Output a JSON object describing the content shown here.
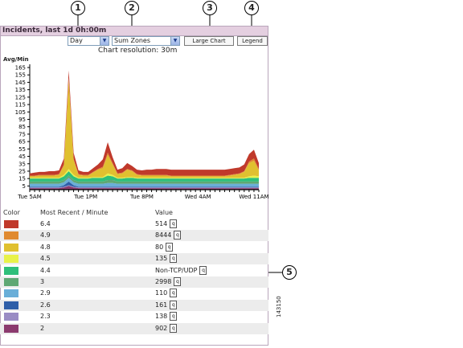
{
  "title": "Incidents, last 1d 0h:00m",
  "controls": {
    "period_select": "Day",
    "zones_select": "Sum Zones",
    "large_chart": "Large Chart",
    "legend": "Legend"
  },
  "resolution": "Chart resolution: 30m",
  "callouts": [
    "1",
    "2",
    "3",
    "4",
    "5"
  ],
  "figure_number": "143150",
  "chart_data": {
    "type": "area",
    "stacked": true,
    "ylabel": "Avg/Min",
    "ylim": [
      0,
      165
    ],
    "yticks": [
      5,
      15,
      25,
      35,
      45,
      55,
      65,
      75,
      85,
      95,
      105,
      115,
      125,
      135,
      145,
      155,
      165
    ],
    "xticks": [
      "Tue 5AM",
      "Tue 1PM",
      "Tue 8PM",
      "Wed 4AM",
      "Wed 11AM"
    ],
    "x": [
      0,
      1,
      2,
      3,
      4,
      5,
      6,
      7,
      8,
      9,
      10,
      11,
      12,
      13,
      14,
      15,
      16,
      17,
      18,
      19,
      20,
      21,
      22,
      23,
      24,
      25,
      26,
      27,
      28,
      29,
      30,
      31,
      32,
      33,
      34,
      35,
      36,
      37,
      38,
      39,
      40,
      41,
      42,
      43,
      44,
      45,
      46,
      47
    ],
    "series": [
      {
        "color": "#8b3a6e",
        "values": [
          2,
          2,
          2,
          2,
          2,
          2,
          2,
          3,
          5,
          3,
          2,
          2,
          2,
          2,
          2,
          2,
          2,
          2,
          2,
          2,
          2,
          2,
          2,
          2,
          2,
          2,
          2,
          2,
          2,
          2,
          2,
          2,
          2,
          2,
          2,
          2,
          2,
          2,
          2,
          2,
          2,
          2,
          2,
          2,
          2,
          2,
          2,
          2
        ]
      },
      {
        "color": "#9a8cc4",
        "values": [
          1,
          1,
          1,
          1,
          1,
          1,
          1,
          1,
          1,
          1,
          1,
          1,
          1,
          1,
          1,
          1,
          1,
          1,
          1,
          1,
          1,
          1,
          1,
          1,
          1,
          1,
          1,
          1,
          1,
          1,
          1,
          1,
          1,
          1,
          1,
          1,
          1,
          1,
          1,
          1,
          1,
          1,
          1,
          1,
          1,
          1,
          1,
          1
        ]
      },
      {
        "color": "#2f5fa8",
        "values": [
          1,
          1,
          1,
          1,
          1,
          1,
          1,
          2,
          5,
          2,
          1,
          1,
          1,
          1,
          1,
          1,
          1,
          1,
          1,
          1,
          1,
          1,
          1,
          1,
          1,
          1,
          1,
          1,
          1,
          1,
          1,
          1,
          1,
          1,
          1,
          1,
          1,
          1,
          1,
          1,
          1,
          1,
          1,
          1,
          1,
          1,
          1,
          1
        ]
      },
      {
        "color": "#6aaed8",
        "values": [
          4,
          4,
          4,
          4,
          4,
          4,
          4,
          4,
          5,
          4,
          4,
          4,
          4,
          4,
          4,
          4,
          5,
          5,
          4,
          4,
          4,
          4,
          4,
          4,
          4,
          4,
          4,
          4,
          4,
          4,
          4,
          4,
          4,
          4,
          4,
          4,
          4,
          4,
          4,
          4,
          4,
          4,
          4,
          4,
          4,
          4,
          4,
          4
        ]
      },
      {
        "color": "#5fa874",
        "values": [
          3,
          3,
          3,
          3,
          3,
          3,
          3,
          3,
          3,
          3,
          3,
          3,
          3,
          3,
          3,
          3,
          4,
          4,
          3,
          3,
          3,
          3,
          3,
          3,
          3,
          3,
          3,
          3,
          3,
          3,
          3,
          3,
          3,
          3,
          3,
          3,
          3,
          3,
          3,
          3,
          3,
          3,
          3,
          3,
          3,
          3,
          3,
          3
        ]
      },
      {
        "color": "#2fbf7a",
        "values": [
          4,
          4,
          4,
          4,
          4,
          4,
          4,
          5,
          6,
          5,
          4,
          4,
          4,
          5,
          5,
          5,
          6,
          5,
          4,
          4,
          5,
          5,
          4,
          4,
          4,
          4,
          4,
          4,
          4,
          4,
          4,
          4,
          4,
          4,
          4,
          4,
          4,
          4,
          4,
          4,
          4,
          4,
          4,
          4,
          4,
          5,
          5,
          5
        ]
      },
      {
        "color": "#e8f24a",
        "values": [
          1,
          1,
          1,
          1,
          1,
          1,
          1,
          2,
          3,
          2,
          1,
          1,
          1,
          1,
          1,
          1,
          3,
          2,
          1,
          1,
          1,
          1,
          1,
          1,
          1,
          1,
          1,
          1,
          1,
          1,
          1,
          1,
          1,
          1,
          1,
          1,
          1,
          1,
          1,
          1,
          1,
          1,
          1,
          1,
          1,
          2,
          3,
          2
        ]
      },
      {
        "color": "#e0c030",
        "values": [
          2,
          2,
          3,
          3,
          3,
          3,
          4,
          12,
          120,
          20,
          4,
          3,
          3,
          6,
          10,
          12,
          25,
          14,
          5,
          6,
          10,
          8,
          4,
          3,
          3,
          3,
          3,
          3,
          3,
          2,
          2,
          2,
          2,
          2,
          2,
          2,
          2,
          2,
          2,
          2,
          2,
          3,
          4,
          5,
          8,
          18,
          20,
          8
        ]
      },
      {
        "color": "#e08a30",
        "values": [
          1,
          1,
          1,
          1,
          1,
          1,
          1,
          2,
          3,
          2,
          1,
          1,
          1,
          1,
          1,
          2,
          3,
          2,
          1,
          1,
          1,
          1,
          1,
          1,
          1,
          1,
          1,
          1,
          1,
          1,
          1,
          1,
          1,
          1,
          1,
          1,
          1,
          1,
          1,
          1,
          1,
          1,
          1,
          1,
          1,
          2,
          3,
          2
        ]
      },
      {
        "color": "#c0392b",
        "values": [
          3,
          4,
          4,
          4,
          5,
          5,
          5,
          8,
          10,
          8,
          5,
          4,
          4,
          5,
          6,
          10,
          14,
          8,
          5,
          6,
          8,
          6,
          6,
          6,
          7,
          7,
          8,
          8,
          8,
          8,
          8,
          8,
          8,
          8,
          8,
          8,
          8,
          8,
          8,
          8,
          8,
          8,
          8,
          8,
          9,
          10,
          12,
          8
        ]
      }
    ]
  },
  "legend_table": {
    "headers": [
      "Color",
      "Most Recent / Minute",
      "Value"
    ],
    "rows": [
      {
        "color": "#c0392b",
        "recent": "6.4",
        "value": "514"
      },
      {
        "color": "#e08a30",
        "recent": "4.9",
        "value": "8444"
      },
      {
        "color": "#e0c030",
        "recent": "4.8",
        "value": "80"
      },
      {
        "color": "#e8f24a",
        "recent": "4.5",
        "value": "135"
      },
      {
        "color": "#2fbf7a",
        "recent": "4.4",
        "value": "Non-TCP/UDP"
      },
      {
        "color": "#5fa874",
        "recent": "3",
        "value": "2998"
      },
      {
        "color": "#6aaed8",
        "recent": "2.9",
        "value": "110"
      },
      {
        "color": "#2f5fa8",
        "recent": "2.6",
        "value": "161"
      },
      {
        "color": "#9a8cc4",
        "recent": "2.3",
        "value": "138"
      },
      {
        "color": "#8b3a6e",
        "recent": "2",
        "value": "902"
      }
    ]
  }
}
